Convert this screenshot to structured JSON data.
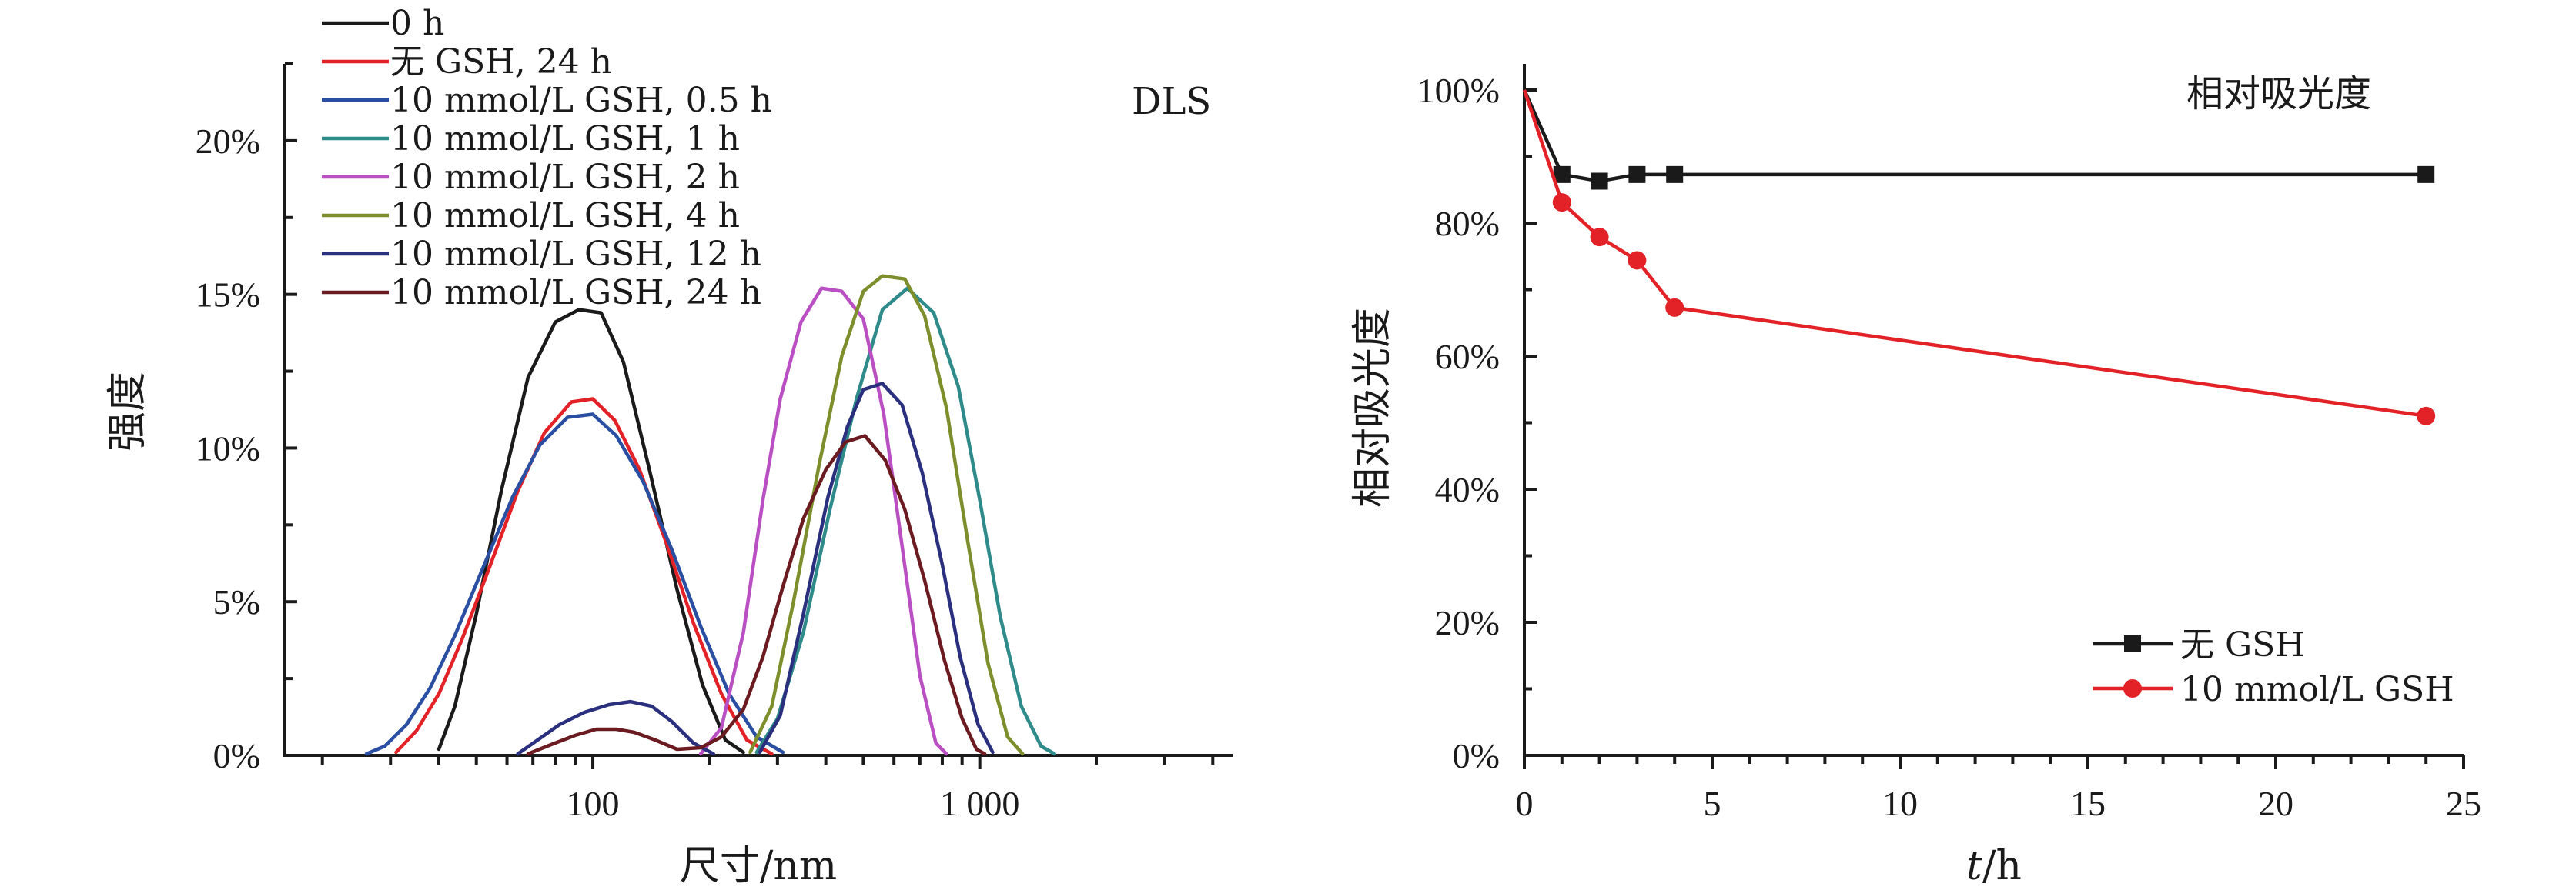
{
  "chart_data": [
    {
      "type": "line",
      "annotation": "DLS",
      "xlabel": "尺寸/nm",
      "ylabel": "强度",
      "xscale": "log",
      "xlim": [
        16,
        4500
      ],
      "ylim": [
        0,
        22.5
      ],
      "x_ticks": [
        {
          "value": 100,
          "label": "100"
        },
        {
          "value": 1000,
          "label": "1 000"
        }
      ],
      "y_ticks": [
        {
          "value": 0,
          "label": "0%"
        },
        {
          "value": 5,
          "label": "5%"
        },
        {
          "value": 10,
          "label": "10%"
        },
        {
          "value": 15,
          "label": "15%"
        },
        {
          "value": 20,
          "label": "20%"
        }
      ],
      "legend_position": "top-left",
      "series": [
        {
          "name": "0 h",
          "color": "#1a1a1a",
          "segments": [
            [
              [
                40,
                0.2
              ],
              [
                44,
                1.6
              ],
              [
                50,
                4.6
              ],
              [
                58,
                8.6
              ],
              [
                68,
                12.3
              ],
              [
                80,
                14.1
              ],
              [
                92,
                14.5
              ],
              [
                105,
                14.4
              ],
              [
                120,
                12.8
              ],
              [
                140,
                9.3
              ],
              [
                165,
                5.4
              ],
              [
                192,
                2.3
              ],
              [
                220,
                0.5
              ],
              [
                245,
                0.1
              ]
            ]
          ]
        },
        {
          "name": "无 GSH, 24 h",
          "color": "#e32228",
          "segments": [
            [
              [
                31,
                0.1
              ],
              [
                35,
                0.8
              ],
              [
                40,
                2.0
              ],
              [
                46,
                3.8
              ],
              [
                54,
                6.1
              ],
              [
                64,
                8.6
              ],
              [
                75,
                10.5
              ],
              [
                88,
                11.5
              ],
              [
                100,
                11.6
              ],
              [
                114,
                10.9
              ],
              [
                132,
                9.3
              ],
              [
                155,
                6.9
              ],
              [
                182,
                4.3
              ],
              [
                215,
                2.0
              ],
              [
                250,
                0.5
              ],
              [
                290,
                0.05
              ]
            ]
          ]
        },
        {
          "name": "10 mmol/L GSH, 0.5 h",
          "color": "#2a4ea1",
          "segments": [
            [
              [
                26,
                0.05
              ],
              [
                29,
                0.3
              ],
              [
                33,
                1.0
              ],
              [
                38,
                2.2
              ],
              [
                44,
                3.9
              ],
              [
                52,
                6.1
              ],
              [
                62,
                8.4
              ],
              [
                73,
                10.1
              ],
              [
                86,
                11.0
              ],
              [
                100,
                11.1
              ],
              [
                115,
                10.4
              ],
              [
                135,
                8.9
              ],
              [
                160,
                6.7
              ],
              [
                190,
                4.2
              ],
              [
                225,
                2.0
              ],
              [
                265,
                0.6
              ],
              [
                310,
                0.1
              ]
            ]
          ]
        },
        {
          "name": "10 mmol/L GSH, 1 h",
          "color": "#2f8a8a",
          "segments": [
            [
              [
                265,
                0.1
              ],
              [
                300,
                1.2
              ],
              [
                350,
                4.0
              ],
              [
                410,
                8.0
              ],
              [
                480,
                11.6
              ],
              [
                560,
                14.5
              ],
              [
                650,
                15.2
              ],
              [
                760,
                14.4
              ],
              [
                880,
                12.0
              ],
              [
                1000,
                8.3
              ],
              [
                1130,
                4.5
              ],
              [
                1280,
                1.6
              ],
              [
                1440,
                0.3
              ],
              [
                1560,
                0.05
              ]
            ]
          ]
        },
        {
          "name": "10 mmol/L GSH, 2 h",
          "color": "#b94fc2",
          "segments": [
            [
              [
                190,
                0.05
              ],
              [
                215,
                0.9
              ],
              [
                245,
                4.0
              ],
              [
                275,
                8.3
              ],
              [
                305,
                11.6
              ],
              [
                345,
                14.1
              ],
              [
                390,
                15.2
              ],
              [
                440,
                15.1
              ],
              [
                500,
                14.2
              ],
              [
                565,
                11.1
              ],
              [
                630,
                6.8
              ],
              [
                700,
                2.6
              ],
              [
                770,
                0.4
              ],
              [
                820,
                0.05
              ]
            ]
          ]
        },
        {
          "name": "10 mmol/L GSH, 4 h",
          "color": "#7d8e2c",
          "segments": [
            [
              [
                255,
                0.1
              ],
              [
                290,
                1.6
              ],
              [
                330,
                5.0
              ],
              [
                385,
                9.5
              ],
              [
                440,
                13.0
              ],
              [
                500,
                15.1
              ],
              [
                560,
                15.6
              ],
              [
                640,
                15.5
              ],
              [
                720,
                14.3
              ],
              [
                820,
                11.3
              ],
              [
                930,
                7.0
              ],
              [
                1050,
                3.0
              ],
              [
                1180,
                0.6
              ],
              [
                1290,
                0.05
              ]
            ]
          ]
        },
        {
          "name": "10 mmol/L GSH, 12 h",
          "color": "#2a2f7e",
          "segments": [
            [
              [
                64,
                0.05
              ],
              [
                72,
                0.5
              ],
              [
                82,
                1.0
              ],
              [
                95,
                1.4
              ],
              [
                110,
                1.65
              ],
              [
                125,
                1.75
              ],
              [
                142,
                1.6
              ],
              [
                160,
                1.1
              ],
              [
                182,
                0.4
              ],
              [
                205,
                0.05
              ]
            ],
            [
              [
                270,
                0.1
              ],
              [
                305,
                1.3
              ],
              [
                350,
                4.6
              ],
              [
                405,
                8.4
              ],
              [
                455,
                10.7
              ],
              [
                500,
                11.9
              ],
              [
                560,
                12.1
              ],
              [
                630,
                11.4
              ],
              [
                710,
                9.2
              ],
              [
                800,
                6.2
              ],
              [
                890,
                3.2
              ],
              [
                990,
                1.0
              ],
              [
                1080,
                0.1
              ]
            ]
          ]
        },
        {
          "name": "10 mmol/L GSH, 24 h",
          "color": "#6b1a1f",
          "segments": [
            [
              [
                68,
                0.05
              ],
              [
                78,
                0.35
              ],
              [
                90,
                0.65
              ],
              [
                102,
                0.85
              ],
              [
                115,
                0.85
              ],
              [
                128,
                0.75
              ],
              [
                145,
                0.5
              ],
              [
                165,
                0.2
              ],
              [
                190,
                0.25
              ],
              [
                215,
                0.6
              ],
              [
                245,
                1.5
              ],
              [
                275,
                3.2
              ],
              [
                310,
                5.5
              ],
              [
                350,
                7.7
              ],
              [
                400,
                9.3
              ],
              [
                450,
                10.2
              ],
              [
                505,
                10.4
              ],
              [
                570,
                9.6
              ],
              [
                640,
                8.0
              ],
              [
                720,
                5.7
              ],
              [
                810,
                3.1
              ],
              [
                900,
                1.2
              ],
              [
                980,
                0.2
              ],
              [
                1030,
                0.05
              ]
            ]
          ]
        }
      ]
    },
    {
      "type": "line",
      "annotation": "相对吸光度",
      "xlabel_var": "t",
      "xlabel_unit": "/h",
      "ylabel": "相对吸光度",
      "xlim": [
        0,
        25
      ],
      "ylim": [
        0,
        100
      ],
      "x_ticks": [
        {
          "value": 0,
          "label": "0"
        },
        {
          "value": 5,
          "label": "5"
        },
        {
          "value": 10,
          "label": "10"
        },
        {
          "value": 15,
          "label": "15"
        },
        {
          "value": 20,
          "label": "20"
        },
        {
          "value": 25,
          "label": "25"
        }
      ],
      "y_ticks": [
        {
          "value": 0,
          "label": "0%"
        },
        {
          "value": 20,
          "label": "20%"
        },
        {
          "value": 40,
          "label": "40%"
        },
        {
          "value": 60,
          "label": "60%"
        },
        {
          "value": 80,
          "label": "80%"
        },
        {
          "value": 100,
          "label": "100%"
        }
      ],
      "legend_position": "bottom-right",
      "series": [
        {
          "name": "无 GSH",
          "color": "#1a1a1a",
          "marker": "square",
          "x": [
            0,
            1,
            2,
            3,
            4,
            24
          ],
          "y": [
            100,
            87.3,
            86.3,
            87.3,
            87.3,
            87.3
          ]
        },
        {
          "name": "10 mmol/L GSH",
          "color": "#e32228",
          "marker": "circle",
          "x": [
            0,
            1,
            2,
            3,
            4,
            24
          ],
          "y": [
            100,
            83.1,
            77.9,
            74.4,
            67.3,
            51.0
          ]
        }
      ]
    }
  ]
}
